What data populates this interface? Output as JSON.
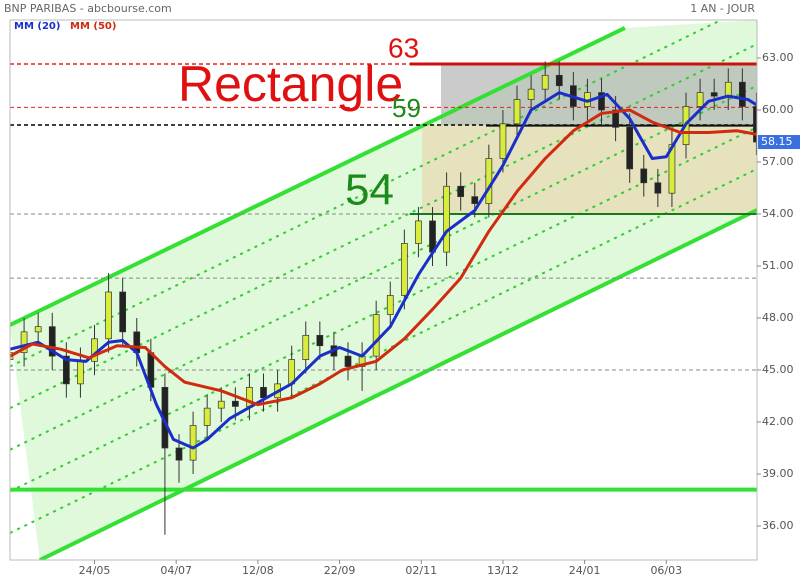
{
  "chart_data": {
    "type": "candlestick",
    "title": "BNP PARIBAS - abcbourse.com",
    "subtitle": "1 AN - JOUR",
    "legend": "top-left",
    "xlim": [
      0,
      265.2
    ],
    "ylim": [
      34.04,
      65.19
    ],
    "yticks": [
      {
        "value": 36,
        "label": "36.00"
      },
      {
        "value": 39,
        "label": "39.00"
      },
      {
        "value": 42,
        "label": "42.00"
      },
      {
        "value": 45,
        "label": "45.00"
      },
      {
        "value": 48,
        "label": "48.00"
      },
      {
        "value": 51,
        "label": "51.00"
      },
      {
        "value": 54,
        "label": "54.00"
      },
      {
        "value": 57,
        "label": "57.00"
      },
      {
        "value": 60,
        "label": "60.00"
      },
      {
        "value": 63,
        "label": "63.00"
      }
    ],
    "xticks": [
      {
        "value": 30,
        "label": "24/05"
      },
      {
        "value": 59,
        "label": "04/07"
      },
      {
        "value": 88,
        "label": "12/08"
      },
      {
        "value": 117,
        "label": "22/09"
      },
      {
        "value": 146,
        "label": "02/11"
      },
      {
        "value": 175,
        "label": "13/12"
      },
      {
        "value": 204,
        "label": "24/01"
      },
      {
        "value": 233,
        "label": "06/03"
      }
    ],
    "up_color": "#d8ec3c",
    "down_color": "#222222",
    "x": [
      0,
      5,
      10,
      15,
      20,
      25,
      30,
      35,
      40,
      45,
      50,
      55,
      60,
      65,
      70,
      75,
      80,
      85,
      90,
      95,
      100,
      105,
      110,
      115,
      120,
      125,
      130,
      135,
      140,
      145,
      150,
      155,
      160,
      165,
      170,
      175,
      180,
      185,
      190,
      195,
      200,
      205,
      210,
      215,
      220,
      225,
      230,
      235,
      240,
      245,
      250,
      255,
      260,
      265
    ],
    "open": [
      45.6,
      46.0,
      47.2,
      47.5,
      45.8,
      44.2,
      45.5,
      46.8,
      49.5,
      47.2,
      46.0,
      44.0,
      40.5,
      39.8,
      41.8,
      42.8,
      43.2,
      42.9,
      44.0,
      43.4,
      44.2,
      45.6,
      47.0,
      46.4,
      45.8,
      45.2,
      45.8,
      48.2,
      49.3,
      52.3,
      53.6,
      51.8,
      55.6,
      55.0,
      54.6,
      57.2,
      59.2,
      60.6,
      61.2,
      62.0,
      61.4,
      60.2,
      61.0,
      60.0,
      59.0,
      56.6,
      55.8,
      55.2,
      58.0,
      60.2,
      61.0,
      60.8,
      61.6,
      60.2
    ],
    "high": [
      46.8,
      48.0,
      48.3,
      48.3,
      46.6,
      46.3,
      47.6,
      50.6,
      50.3,
      48.0,
      46.8,
      44.8,
      41.3,
      42.6,
      43.6,
      44.0,
      44.0,
      44.8,
      44.8,
      45.0,
      46.4,
      47.8,
      47.8,
      47.2,
      46.6,
      46.6,
      49.0,
      50.1,
      53.1,
      54.4,
      54.4,
      56.4,
      56.4,
      55.8,
      58.0,
      60.0,
      61.4,
      62.0,
      62.8,
      62.8,
      62.2,
      61.8,
      61.8,
      60.8,
      59.8,
      57.4,
      56.6,
      58.8,
      61.0,
      61.8,
      61.8,
      62.4,
      62.4,
      61.0
    ],
    "low": [
      44.8,
      45.2,
      46.4,
      45.0,
      43.4,
      43.4,
      44.7,
      46.0,
      46.4,
      45.2,
      43.2,
      35.5,
      38.5,
      39.0,
      41.0,
      42.0,
      42.1,
      42.1,
      42.6,
      42.6,
      43.4,
      44.8,
      45.6,
      45.0,
      44.4,
      43.8,
      45.0,
      47.4,
      48.5,
      51.5,
      51.0,
      51.0,
      54.2,
      53.8,
      53.8,
      56.4,
      58.4,
      59.8,
      60.4,
      60.6,
      59.4,
      59.4,
      59.2,
      58.2,
      55.8,
      55.0,
      54.4,
      54.4,
      57.2,
      59.4,
      60.0,
      60.0,
      59.4,
      57.4
    ],
    "close": [
      46.0,
      47.2,
      47.5,
      45.8,
      44.2,
      45.5,
      46.8,
      49.5,
      47.2,
      46.0,
      44.0,
      40.5,
      39.8,
      41.8,
      42.8,
      43.2,
      42.9,
      44.0,
      43.4,
      44.2,
      45.6,
      47.0,
      46.4,
      45.8,
      45.2,
      45.8,
      48.2,
      49.3,
      52.3,
      53.6,
      51.8,
      55.6,
      55.0,
      54.6,
      57.2,
      59.2,
      60.6,
      61.2,
      62.0,
      61.4,
      60.2,
      61.0,
      60.0,
      59.0,
      56.6,
      55.8,
      55.2,
      58.0,
      60.2,
      61.0,
      60.8,
      61.6,
      60.2,
      58.15
    ],
    "last_price": 58.15,
    "last_price_color": "#3a6fe0",
    "series": [
      {
        "name": "MM (20)",
        "color": "#1a2fc8",
        "x": [
          0,
          10,
          20,
          27,
          35,
          40,
          45,
          52,
          58,
          65,
          70,
          78,
          90,
          100,
          110,
          117,
          125,
          135,
          145,
          155,
          165,
          175,
          185,
          195,
          205,
          212,
          220,
          228,
          233,
          240,
          248,
          255,
          262,
          265
        ],
        "values": [
          46.2,
          46.6,
          45.6,
          45.5,
          46.6,
          46.7,
          46.0,
          43.0,
          41.0,
          40.5,
          41.0,
          42.2,
          43.3,
          44.2,
          45.8,
          46.3,
          45.8,
          47.5,
          50.5,
          53.0,
          54.2,
          56.8,
          60.0,
          61.0,
          60.5,
          60.9,
          59.5,
          57.2,
          57.3,
          59.2,
          60.5,
          60.8,
          60.6,
          60.3
        ]
      },
      {
        "name": "MM (50)",
        "color": "#d02a10",
        "x": [
          0,
          8,
          18,
          28,
          38,
          48,
          55,
          62,
          75,
          88,
          100,
          110,
          118,
          130,
          140,
          150,
          160,
          170,
          180,
          190,
          200,
          210,
          220,
          228,
          238,
          248,
          258,
          265
        ],
        "values": [
          45.8,
          46.5,
          46.2,
          45.7,
          46.4,
          46.3,
          45.2,
          44.3,
          43.8,
          43.0,
          43.4,
          44.2,
          45.0,
          45.5,
          46.8,
          48.5,
          50.3,
          53.0,
          55.3,
          57.2,
          58.8,
          59.8,
          60.0,
          59.3,
          58.7,
          58.7,
          58.8,
          58.6
        ]
      }
    ],
    "channel_fill": "#d4f7cc",
    "zones": [
      {
        "x": [
          153,
          265.2
        ],
        "y": [
          59.13,
          62.65
        ],
        "fill": "#a8a8a8"
      },
      {
        "x": [
          146.3,
          265.2
        ],
        "y": [
          54.06,
          59.13
        ],
        "fill": "#e8d2a8"
      }
    ],
    "lines": [
      {
        "x": [
          0,
          218.3
        ],
        "y": [
          47.6,
          64.73
        ],
        "color": "#33e033",
        "width": 4,
        "dashed": false
      },
      {
        "x": [
          10.6,
          265.2
        ],
        "y": [
          34.04,
          54.23
        ],
        "color": "#33e033",
        "width": 4,
        "dashed": false
      },
      {
        "x": [
          0,
          265.2
        ],
        "y": [
          45.2,
          66.2
        ],
        "color": "#33cc33",
        "width": 2,
        "dashed": true
      },
      {
        "x": [
          0,
          265.2
        ],
        "y": [
          42.8,
          63.8
        ],
        "color": "#33cc33",
        "width": 2,
        "dashed": true
      },
      {
        "x": [
          0,
          265.2
        ],
        "y": [
          40.4,
          61.4
        ],
        "color": "#33cc33",
        "width": 2,
        "dashed": true
      },
      {
        "x": [
          0,
          265.2
        ],
        "y": [
          38.0,
          59.0
        ],
        "color": "#33cc33",
        "width": 2,
        "dashed": true
      },
      {
        "x": [
          0,
          265.2
        ],
        "y": [
          35.6,
          56.6
        ],
        "color": "#33cc33",
        "width": 2,
        "dashed": true
      },
      {
        "x": [
          0,
          265.2
        ],
        "y": [
          62.65,
          62.65
        ],
        "color": "#e02020",
        "width": 1.5,
        "dashed": true
      },
      {
        "x": [
          0,
          265.2
        ],
        "y": [
          60.15,
          60.15
        ],
        "color": "#e02020",
        "width": 1,
        "dashed": true
      },
      {
        "x": [
          0,
          265.2
        ],
        "y": [
          59.13,
          59.13
        ],
        "color": "#000000",
        "width": 1.5,
        "dashed": true
      },
      {
        "x": [
          0,
          265.2
        ],
        "y": [
          54.0,
          54.0
        ],
        "color": "#888888",
        "width": 1,
        "dashed": true
      },
      {
        "x": [
          0,
          265.2
        ],
        "y": [
          50.3,
          50.3
        ],
        "color": "#888888",
        "width": 1,
        "dashed": true
      },
      {
        "x": [
          0,
          265.2
        ],
        "y": [
          45.0,
          45.0
        ],
        "color": "#888888",
        "width": 1,
        "dashed": true
      },
      {
        "x": [
          0,
          265.2
        ],
        "y": [
          38.1,
          38.1
        ],
        "color": "#33e033",
        "width": 4,
        "dashed": false
      },
      {
        "x": [
          142,
          265.2
        ],
        "y": [
          62.65,
          62.65
        ],
        "color": "#cc1010",
        "width": 3,
        "dashed": false
      },
      {
        "x": [
          169,
          265.2
        ],
        "y": [
          59.1,
          59.1
        ],
        "color": "#111111",
        "width": 2,
        "dashed": false
      },
      {
        "x": [
          142,
          265.2
        ],
        "y": [
          54.0,
          54.0
        ],
        "color": "#1a7a1a",
        "width": 2,
        "dashed": false
      }
    ],
    "annotations": [
      {
        "text": "63",
        "color": "#e01010"
      },
      {
        "text": "Rectangle",
        "color": "#e01010"
      },
      {
        "text": "59",
        "color": "#1a8a1a"
      },
      {
        "text": "54",
        "color": "#1a8a1a"
      }
    ]
  }
}
